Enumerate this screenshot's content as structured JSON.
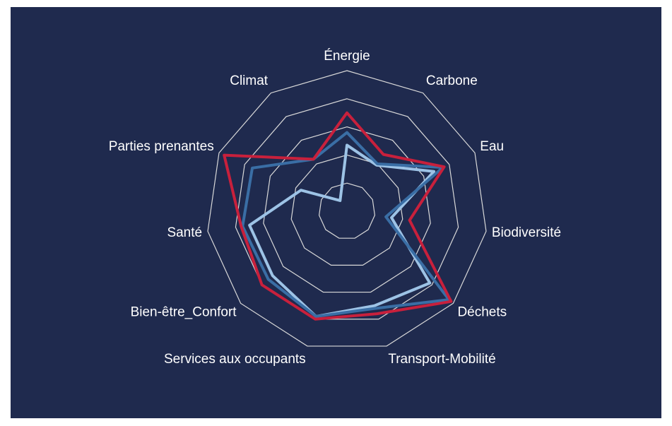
{
  "chart_data": {
    "type": "radar",
    "categories": [
      "Énergie",
      "Carbone",
      "Eau",
      "Biodiversité",
      "Déchets",
      "Transport-Mobilité",
      "Services aux occupants",
      "Bien-être_Confort",
      "Santé",
      "Parties prenantes",
      "Climat"
    ],
    "series": [
      {
        "color": "#9dc3e6",
        "values": [
          2.35,
          1.95,
          3.4,
          1.6,
          3.9,
          3.5,
          3.9,
          3.5,
          3.5,
          1.8,
          0.45
        ]
      },
      {
        "color": "#3a6ea5",
        "values": [
          2.8,
          2.0,
          3.75,
          1.4,
          4.8,
          3.6,
          3.9,
          3.7,
          3.75,
          3.7,
          2.2
        ]
      },
      {
        "color": "#c8203c",
        "values": [
          3.5,
          2.4,
          3.8,
          2.25,
          4.9,
          3.8,
          4.0,
          4.0,
          3.8,
          4.8,
          2.2
        ]
      }
    ],
    "rlim": [
      0,
      5
    ],
    "rticks": [
      1,
      2,
      3,
      4,
      5
    ],
    "grid": true
  }
}
